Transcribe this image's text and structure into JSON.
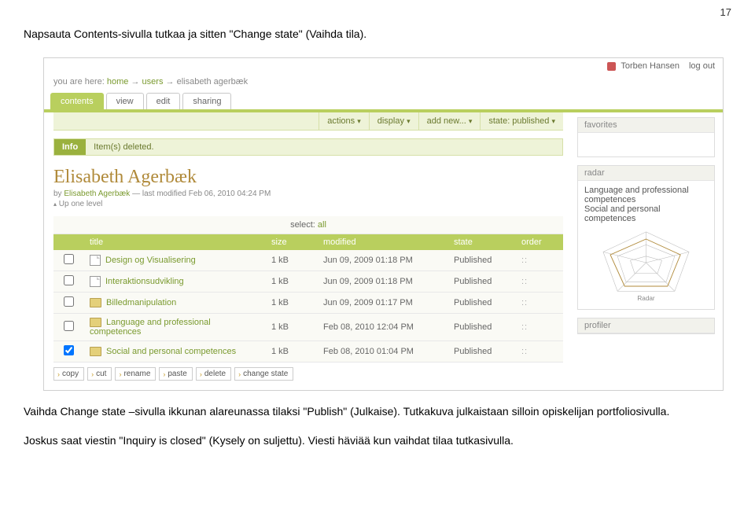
{
  "doc": {
    "page_number": "17",
    "para1": "Napsauta Contents-sivulla tutkaa ja sitten \"Change state\" (Vaihda tila).",
    "para2": "Vaihda Change state –sivulla ikkunan alareunassa tilaksi \"Publish\" (Julkaise). Tutkakuva julkaistaan silloin opiskelijan portfoliosivulla.",
    "para3": "Joskus saat viestin \"Inquiry is closed\" (Kysely on suljettu). Viesti häviää kun vaihdat tilaa tutkasivulla."
  },
  "header": {
    "user_name": "Torben Hansen",
    "logout": "log out"
  },
  "breadcrumb": {
    "prefix": "you are here:",
    "items": [
      "home",
      "users",
      "elisabeth agerbæk"
    ]
  },
  "tabs": [
    {
      "label": "contents",
      "active": true
    },
    {
      "label": "view",
      "active": false
    },
    {
      "label": "edit",
      "active": false
    },
    {
      "label": "sharing",
      "active": false
    }
  ],
  "actions": [
    {
      "label": "actions"
    },
    {
      "label": "display"
    },
    {
      "label": "add new..."
    },
    {
      "label": "state: published"
    }
  ],
  "info": {
    "label": "Info",
    "text": "Item(s) deleted."
  },
  "page": {
    "title": "Elisabeth Agerbæk",
    "byline_prefix": "by ",
    "byline_author": "Elisabeth Agerbæk",
    "byline_sep": " — last modified ",
    "byline_date": "Feb 06, 2010 04:24 PM",
    "up": "Up one level"
  },
  "listing": {
    "select_label": "select:",
    "select_all": "all",
    "cols": {
      "title": "title",
      "size": "size",
      "modified": "modified",
      "state": "state",
      "order": "order"
    },
    "rows": [
      {
        "checked": false,
        "icon": "file",
        "title": "Design og Visualisering",
        "size": "1 kB",
        "modified": "Jun 09, 2009 01:18 PM",
        "state": "Published"
      },
      {
        "checked": false,
        "icon": "file",
        "title": "Interaktionsudvikling",
        "size": "1 kB",
        "modified": "Jun 09, 2009 01:18 PM",
        "state": "Published"
      },
      {
        "checked": false,
        "icon": "folder",
        "title": "Billedmanipulation",
        "size": "1 kB",
        "modified": "Jun 09, 2009 01:17 PM",
        "state": "Published"
      },
      {
        "checked": false,
        "icon": "folder",
        "title": "Language and professional competences",
        "size": "1 kB",
        "modified": "Feb 08, 2010 12:04 PM",
        "state": "Published"
      },
      {
        "checked": true,
        "icon": "folder",
        "title": "Social and personal competences",
        "size": "1 kB",
        "modified": "Feb 08, 2010 01:04 PM",
        "state": "Published"
      }
    ],
    "buttons": [
      "copy",
      "cut",
      "rename",
      "paste",
      "delete",
      "change state"
    ]
  },
  "sidebar": {
    "favorites": {
      "head": "favorites"
    },
    "radar": {
      "head": "radar",
      "items": [
        "Language and professional competences",
        "Social and personal competences"
      ],
      "caption": "Radar",
      "stroke": "#888888",
      "fill_stroke": "#b08a3a"
    },
    "profiler": {
      "head": "profiler"
    }
  },
  "colors": {
    "accent_green": "#b9cf5e",
    "accent_olive": "#7a9a2f",
    "title_gold": "#b08a3a"
  }
}
